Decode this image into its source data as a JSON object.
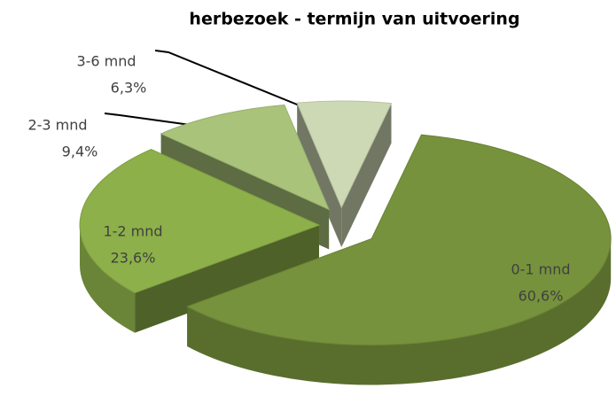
{
  "chart_data": {
    "type": "pie",
    "title": "herbezoek - termijn van uitvoering",
    "categories": [
      "0-1 mnd",
      "1-2 mnd",
      "2-3 mnd",
      "3-6 mnd"
    ],
    "values": [
      60.6,
      23.6,
      9.4,
      6.3
    ],
    "value_labels": [
      "60,6%",
      "23,6%",
      "9,4%",
      "6,3%"
    ],
    "colors": [
      "#76923c",
      "#8db04a",
      "#a9c47a",
      "#cdd9b4"
    ]
  }
}
